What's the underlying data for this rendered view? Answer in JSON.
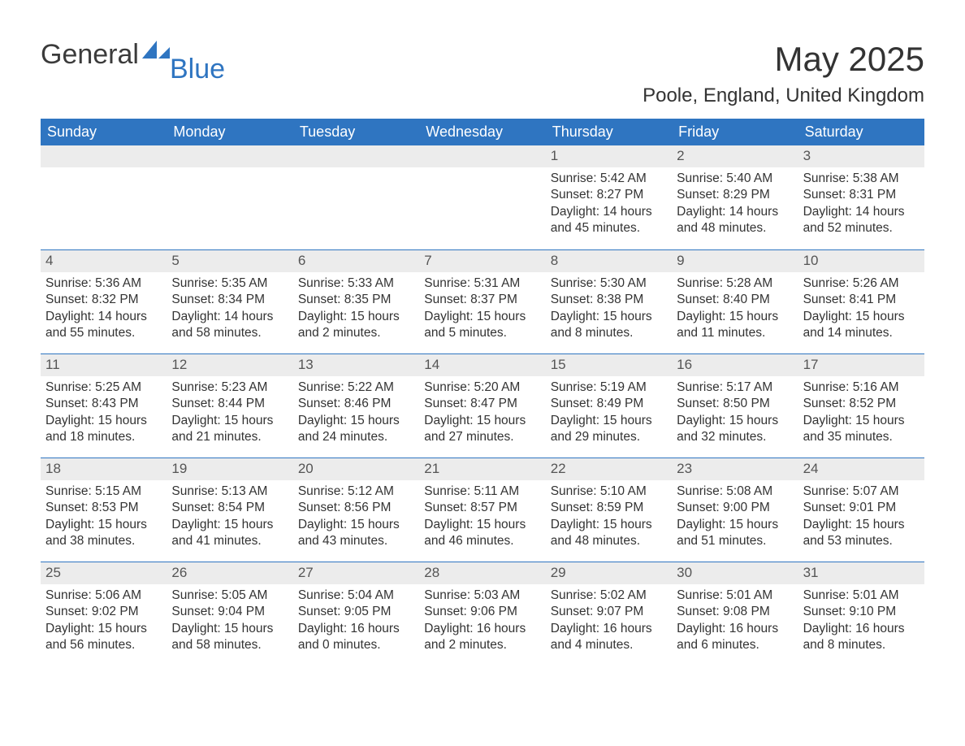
{
  "brand": {
    "word1": "General",
    "word2": "Blue",
    "accent_color": "#2f75c1"
  },
  "title": "May 2025",
  "subtitle": "Poole, England, United Kingdom",
  "colors": {
    "header_bg": "#2f75c1",
    "header_text": "#ffffff",
    "daynum_bg": "#ececec",
    "text": "#333333",
    "row_border": "#2f75c1"
  },
  "days_of_week": [
    "Sunday",
    "Monday",
    "Tuesday",
    "Wednesday",
    "Thursday",
    "Friday",
    "Saturday"
  ],
  "weeks": [
    [
      {
        "n": "",
        "sunrise": "",
        "sunset": "",
        "daylight": ""
      },
      {
        "n": "",
        "sunrise": "",
        "sunset": "",
        "daylight": ""
      },
      {
        "n": "",
        "sunrise": "",
        "sunset": "",
        "daylight": ""
      },
      {
        "n": "",
        "sunrise": "",
        "sunset": "",
        "daylight": ""
      },
      {
        "n": "1",
        "sunrise": "Sunrise: 5:42 AM",
        "sunset": "Sunset: 8:27 PM",
        "daylight": "Daylight: 14 hours and 45 minutes."
      },
      {
        "n": "2",
        "sunrise": "Sunrise: 5:40 AM",
        "sunset": "Sunset: 8:29 PM",
        "daylight": "Daylight: 14 hours and 48 minutes."
      },
      {
        "n": "3",
        "sunrise": "Sunrise: 5:38 AM",
        "sunset": "Sunset: 8:31 PM",
        "daylight": "Daylight: 14 hours and 52 minutes."
      }
    ],
    [
      {
        "n": "4",
        "sunrise": "Sunrise: 5:36 AM",
        "sunset": "Sunset: 8:32 PM",
        "daylight": "Daylight: 14 hours and 55 minutes."
      },
      {
        "n": "5",
        "sunrise": "Sunrise: 5:35 AM",
        "sunset": "Sunset: 8:34 PM",
        "daylight": "Daylight: 14 hours and 58 minutes."
      },
      {
        "n": "6",
        "sunrise": "Sunrise: 5:33 AM",
        "sunset": "Sunset: 8:35 PM",
        "daylight": "Daylight: 15 hours and 2 minutes."
      },
      {
        "n": "7",
        "sunrise": "Sunrise: 5:31 AM",
        "sunset": "Sunset: 8:37 PM",
        "daylight": "Daylight: 15 hours and 5 minutes."
      },
      {
        "n": "8",
        "sunrise": "Sunrise: 5:30 AM",
        "sunset": "Sunset: 8:38 PM",
        "daylight": "Daylight: 15 hours and 8 minutes."
      },
      {
        "n": "9",
        "sunrise": "Sunrise: 5:28 AM",
        "sunset": "Sunset: 8:40 PM",
        "daylight": "Daylight: 15 hours and 11 minutes."
      },
      {
        "n": "10",
        "sunrise": "Sunrise: 5:26 AM",
        "sunset": "Sunset: 8:41 PM",
        "daylight": "Daylight: 15 hours and 14 minutes."
      }
    ],
    [
      {
        "n": "11",
        "sunrise": "Sunrise: 5:25 AM",
        "sunset": "Sunset: 8:43 PM",
        "daylight": "Daylight: 15 hours and 18 minutes."
      },
      {
        "n": "12",
        "sunrise": "Sunrise: 5:23 AM",
        "sunset": "Sunset: 8:44 PM",
        "daylight": "Daylight: 15 hours and 21 minutes."
      },
      {
        "n": "13",
        "sunrise": "Sunrise: 5:22 AM",
        "sunset": "Sunset: 8:46 PM",
        "daylight": "Daylight: 15 hours and 24 minutes."
      },
      {
        "n": "14",
        "sunrise": "Sunrise: 5:20 AM",
        "sunset": "Sunset: 8:47 PM",
        "daylight": "Daylight: 15 hours and 27 minutes."
      },
      {
        "n": "15",
        "sunrise": "Sunrise: 5:19 AM",
        "sunset": "Sunset: 8:49 PM",
        "daylight": "Daylight: 15 hours and 29 minutes."
      },
      {
        "n": "16",
        "sunrise": "Sunrise: 5:17 AM",
        "sunset": "Sunset: 8:50 PM",
        "daylight": "Daylight: 15 hours and 32 minutes."
      },
      {
        "n": "17",
        "sunrise": "Sunrise: 5:16 AM",
        "sunset": "Sunset: 8:52 PM",
        "daylight": "Daylight: 15 hours and 35 minutes."
      }
    ],
    [
      {
        "n": "18",
        "sunrise": "Sunrise: 5:15 AM",
        "sunset": "Sunset: 8:53 PM",
        "daylight": "Daylight: 15 hours and 38 minutes."
      },
      {
        "n": "19",
        "sunrise": "Sunrise: 5:13 AM",
        "sunset": "Sunset: 8:54 PM",
        "daylight": "Daylight: 15 hours and 41 minutes."
      },
      {
        "n": "20",
        "sunrise": "Sunrise: 5:12 AM",
        "sunset": "Sunset: 8:56 PM",
        "daylight": "Daylight: 15 hours and 43 minutes."
      },
      {
        "n": "21",
        "sunrise": "Sunrise: 5:11 AM",
        "sunset": "Sunset: 8:57 PM",
        "daylight": "Daylight: 15 hours and 46 minutes."
      },
      {
        "n": "22",
        "sunrise": "Sunrise: 5:10 AM",
        "sunset": "Sunset: 8:59 PM",
        "daylight": "Daylight: 15 hours and 48 minutes."
      },
      {
        "n": "23",
        "sunrise": "Sunrise: 5:08 AM",
        "sunset": "Sunset: 9:00 PM",
        "daylight": "Daylight: 15 hours and 51 minutes."
      },
      {
        "n": "24",
        "sunrise": "Sunrise: 5:07 AM",
        "sunset": "Sunset: 9:01 PM",
        "daylight": "Daylight: 15 hours and 53 minutes."
      }
    ],
    [
      {
        "n": "25",
        "sunrise": "Sunrise: 5:06 AM",
        "sunset": "Sunset: 9:02 PM",
        "daylight": "Daylight: 15 hours and 56 minutes."
      },
      {
        "n": "26",
        "sunrise": "Sunrise: 5:05 AM",
        "sunset": "Sunset: 9:04 PM",
        "daylight": "Daylight: 15 hours and 58 minutes."
      },
      {
        "n": "27",
        "sunrise": "Sunrise: 5:04 AM",
        "sunset": "Sunset: 9:05 PM",
        "daylight": "Daylight: 16 hours and 0 minutes."
      },
      {
        "n": "28",
        "sunrise": "Sunrise: 5:03 AM",
        "sunset": "Sunset: 9:06 PM",
        "daylight": "Daylight: 16 hours and 2 minutes."
      },
      {
        "n": "29",
        "sunrise": "Sunrise: 5:02 AM",
        "sunset": "Sunset: 9:07 PM",
        "daylight": "Daylight: 16 hours and 4 minutes."
      },
      {
        "n": "30",
        "sunrise": "Sunrise: 5:01 AM",
        "sunset": "Sunset: 9:08 PM",
        "daylight": "Daylight: 16 hours and 6 minutes."
      },
      {
        "n": "31",
        "sunrise": "Sunrise: 5:01 AM",
        "sunset": "Sunset: 9:10 PM",
        "daylight": "Daylight: 16 hours and 8 minutes."
      }
    ]
  ]
}
